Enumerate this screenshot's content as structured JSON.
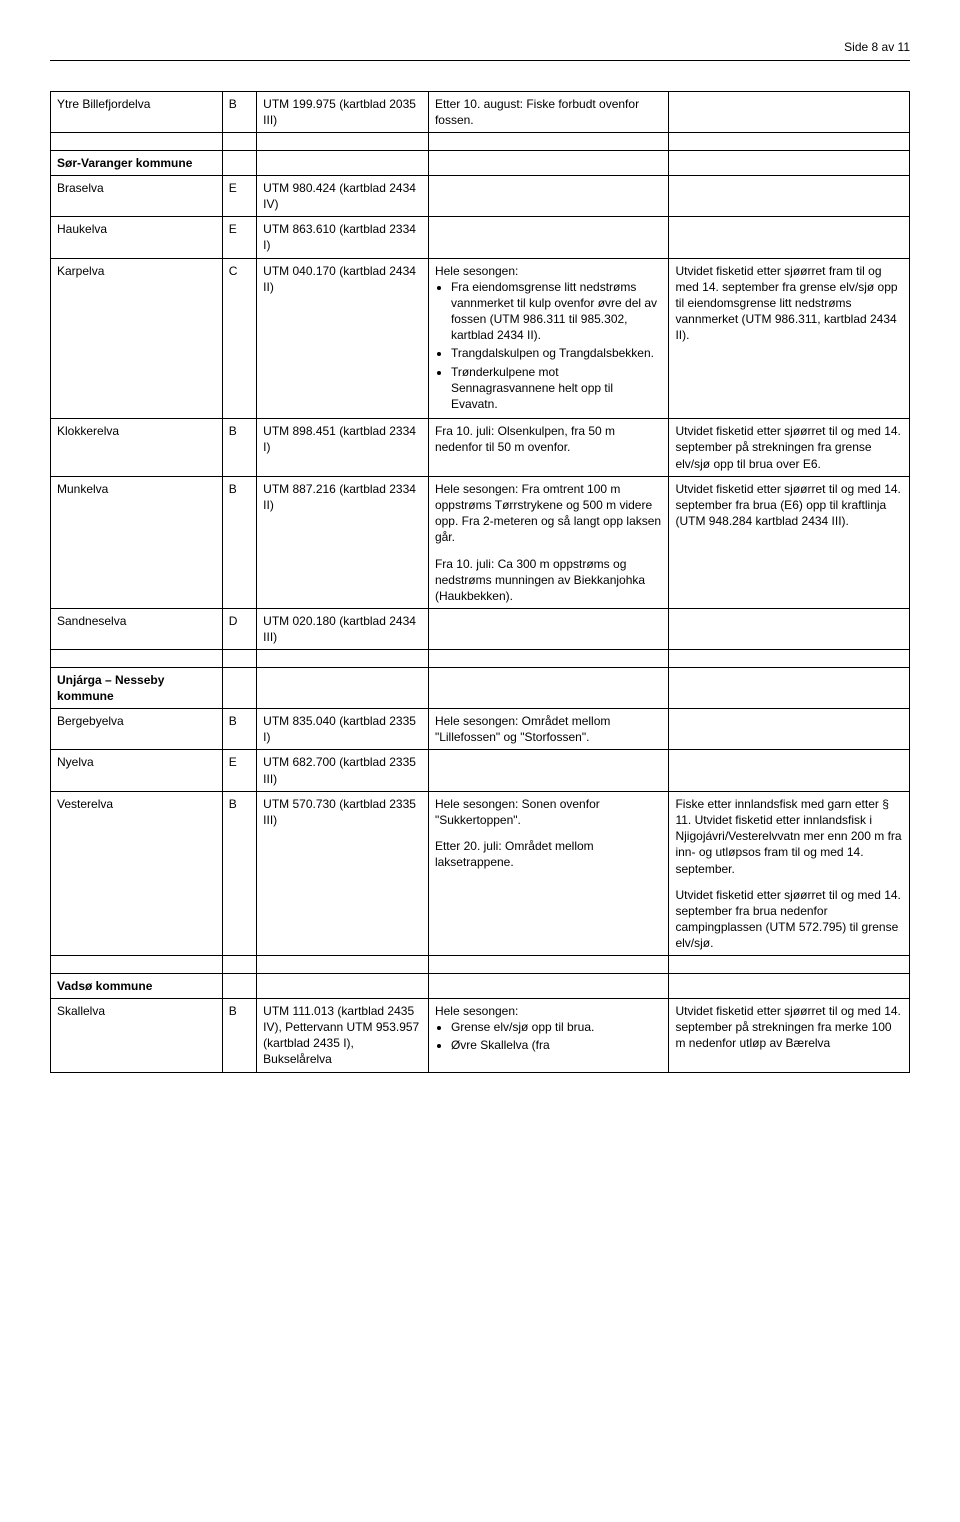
{
  "header": {
    "pageLabel": "Side 8 av 11"
  },
  "rows": [
    {
      "c1": "Ytre Billefjordelva",
      "c2": "B",
      "c3": "UTM 199.975 (kartblad 2035 III)",
      "c4_plain": "Etter 10. august: Fiske forbudt ovenfor fossen.",
      "c5_plain": ""
    },
    {
      "empty": true
    },
    {
      "c1_bold": "Sør-Varanger kommune",
      "c2": "",
      "c3": "",
      "c4_plain": "",
      "c5_plain": ""
    },
    {
      "c1": "Braselva",
      "c2": "E",
      "c3": "UTM 980.424 (kartblad 2434 IV)",
      "c4_plain": "",
      "c5_plain": ""
    },
    {
      "c1": "Haukelva",
      "c2": "E",
      "c3": "UTM 863.610 (kartblad 2334 I)",
      "c4_plain": "",
      "c5_plain": ""
    },
    {
      "c1": "Karpelva",
      "c2": "C",
      "c3": "UTM 040.170 (kartblad 2434 II)",
      "c4_intro": "Hele sesongen:",
      "c4_bullets": [
        "Fra eiendomsgrense litt nedstrøms vannmerket til kulp ovenfor øvre del av fossen (UTM 986.311 til 985.302, kartblad 2434 II).",
        "Trangdalskulpen og Trangdalsbekken.",
        "Trønderkulpene mot Sennagrasvannene helt opp til Evavatn."
      ],
      "c5_plain": "Utvidet fisketid etter sjøørret fram til og med 14. september fra grense elv/sjø opp til eiendomsgrense litt nedstrøms vannmerket (UTM 986.311, kartblad 2434 II)."
    },
    {
      "c1": "Klokkerelva",
      "c2": "B",
      "c3": "UTM 898.451 (kartblad 2334 I)",
      "c4_plain": "Fra 10. juli: Olsenkulpen, fra 50 m nedenfor til 50 m ovenfor.",
      "c5_plain": "Utvidet fisketid etter sjøørret til og med 14. september på strekningen fra grense elv/sjø opp til brua over E6."
    },
    {
      "c1": "Munkelva",
      "c2": "B",
      "c3": "UTM 887.216 (kartblad 2334 II)",
      "c4_paras": [
        "Hele sesongen: Fra omtrent 100 m oppstrøms Tørrstrykene og 500 m videre opp. Fra 2-meteren og så langt opp laksen går.",
        "Fra 10. juli: Ca 300 m oppstrøms og nedstrøms munningen av Biekkanjohka (Haukbekken)."
      ],
      "c5_plain": "Utvidet fisketid etter sjøørret til og med 14. september fra brua (E6) opp til kraftlinja (UTM 948.284 kartblad 2434 III)."
    },
    {
      "c1": "Sandneselva",
      "c2": "D",
      "c3": "UTM 020.180 (kartblad 2434 III)",
      "c4_plain": "",
      "c5_plain": ""
    },
    {
      "empty": true
    },
    {
      "c1_bold": "Unjárga – Nesseby kommune",
      "c2": "",
      "c3": "",
      "c4_plain": "",
      "c5_plain": ""
    },
    {
      "c1": "Bergebyelva",
      "c2": "B",
      "c3": "UTM 835.040 (kartblad 2335 I)",
      "c4_plain": "Hele sesongen: Området mellom \"Lillefossen\" og \"Storfossen\".",
      "c5_plain": ""
    },
    {
      "c1": "Nyelva",
      "c2": "E",
      "c3": "UTM 682.700 (kartblad 2335 III)",
      "c4_plain": "",
      "c5_plain": ""
    },
    {
      "c1": "Vesterelva",
      "c2": "B",
      "c3": "UTM 570.730 (kartblad 2335 III)",
      "c4_paras": [
        "Hele sesongen: Sonen ovenfor \"Sukkertoppen\".",
        "Etter 20. juli: Området mellom laksetrappene."
      ],
      "c5_paras": [
        "Fiske etter innlandsfisk med garn etter § 11. Utvidet fisketid etter innlandsfisk i Njigojávri/Vesterelvvatn mer enn 200 m fra inn- og utløpsos fram til og med 14. september.",
        "Utvidet fisketid etter sjøørret til og med 14. september fra brua nedenfor campingplassen (UTM 572.795) til grense elv/sjø."
      ]
    },
    {
      "empty": true
    },
    {
      "c1_bold": "Vadsø kommune",
      "c2": "",
      "c3": "",
      "c4_plain": "",
      "c5_plain": ""
    },
    {
      "c1": "Skallelva",
      "c2": "B",
      "c3": "UTM 111.013 (kartblad 2435 IV), Pettervann UTM 953.957 (kartblad 2435 I), Bukselårelva",
      "c4_intro": "Hele sesongen:",
      "c4_bullets": [
        "Grense elv/sjø opp til brua.",
        "Øvre Skallelva (fra"
      ],
      "c5_plain": "Utvidet fisketid etter sjøørret til og med 14. september på strekningen fra merke 100 m nedenfor utløp av Bærelva"
    }
  ]
}
